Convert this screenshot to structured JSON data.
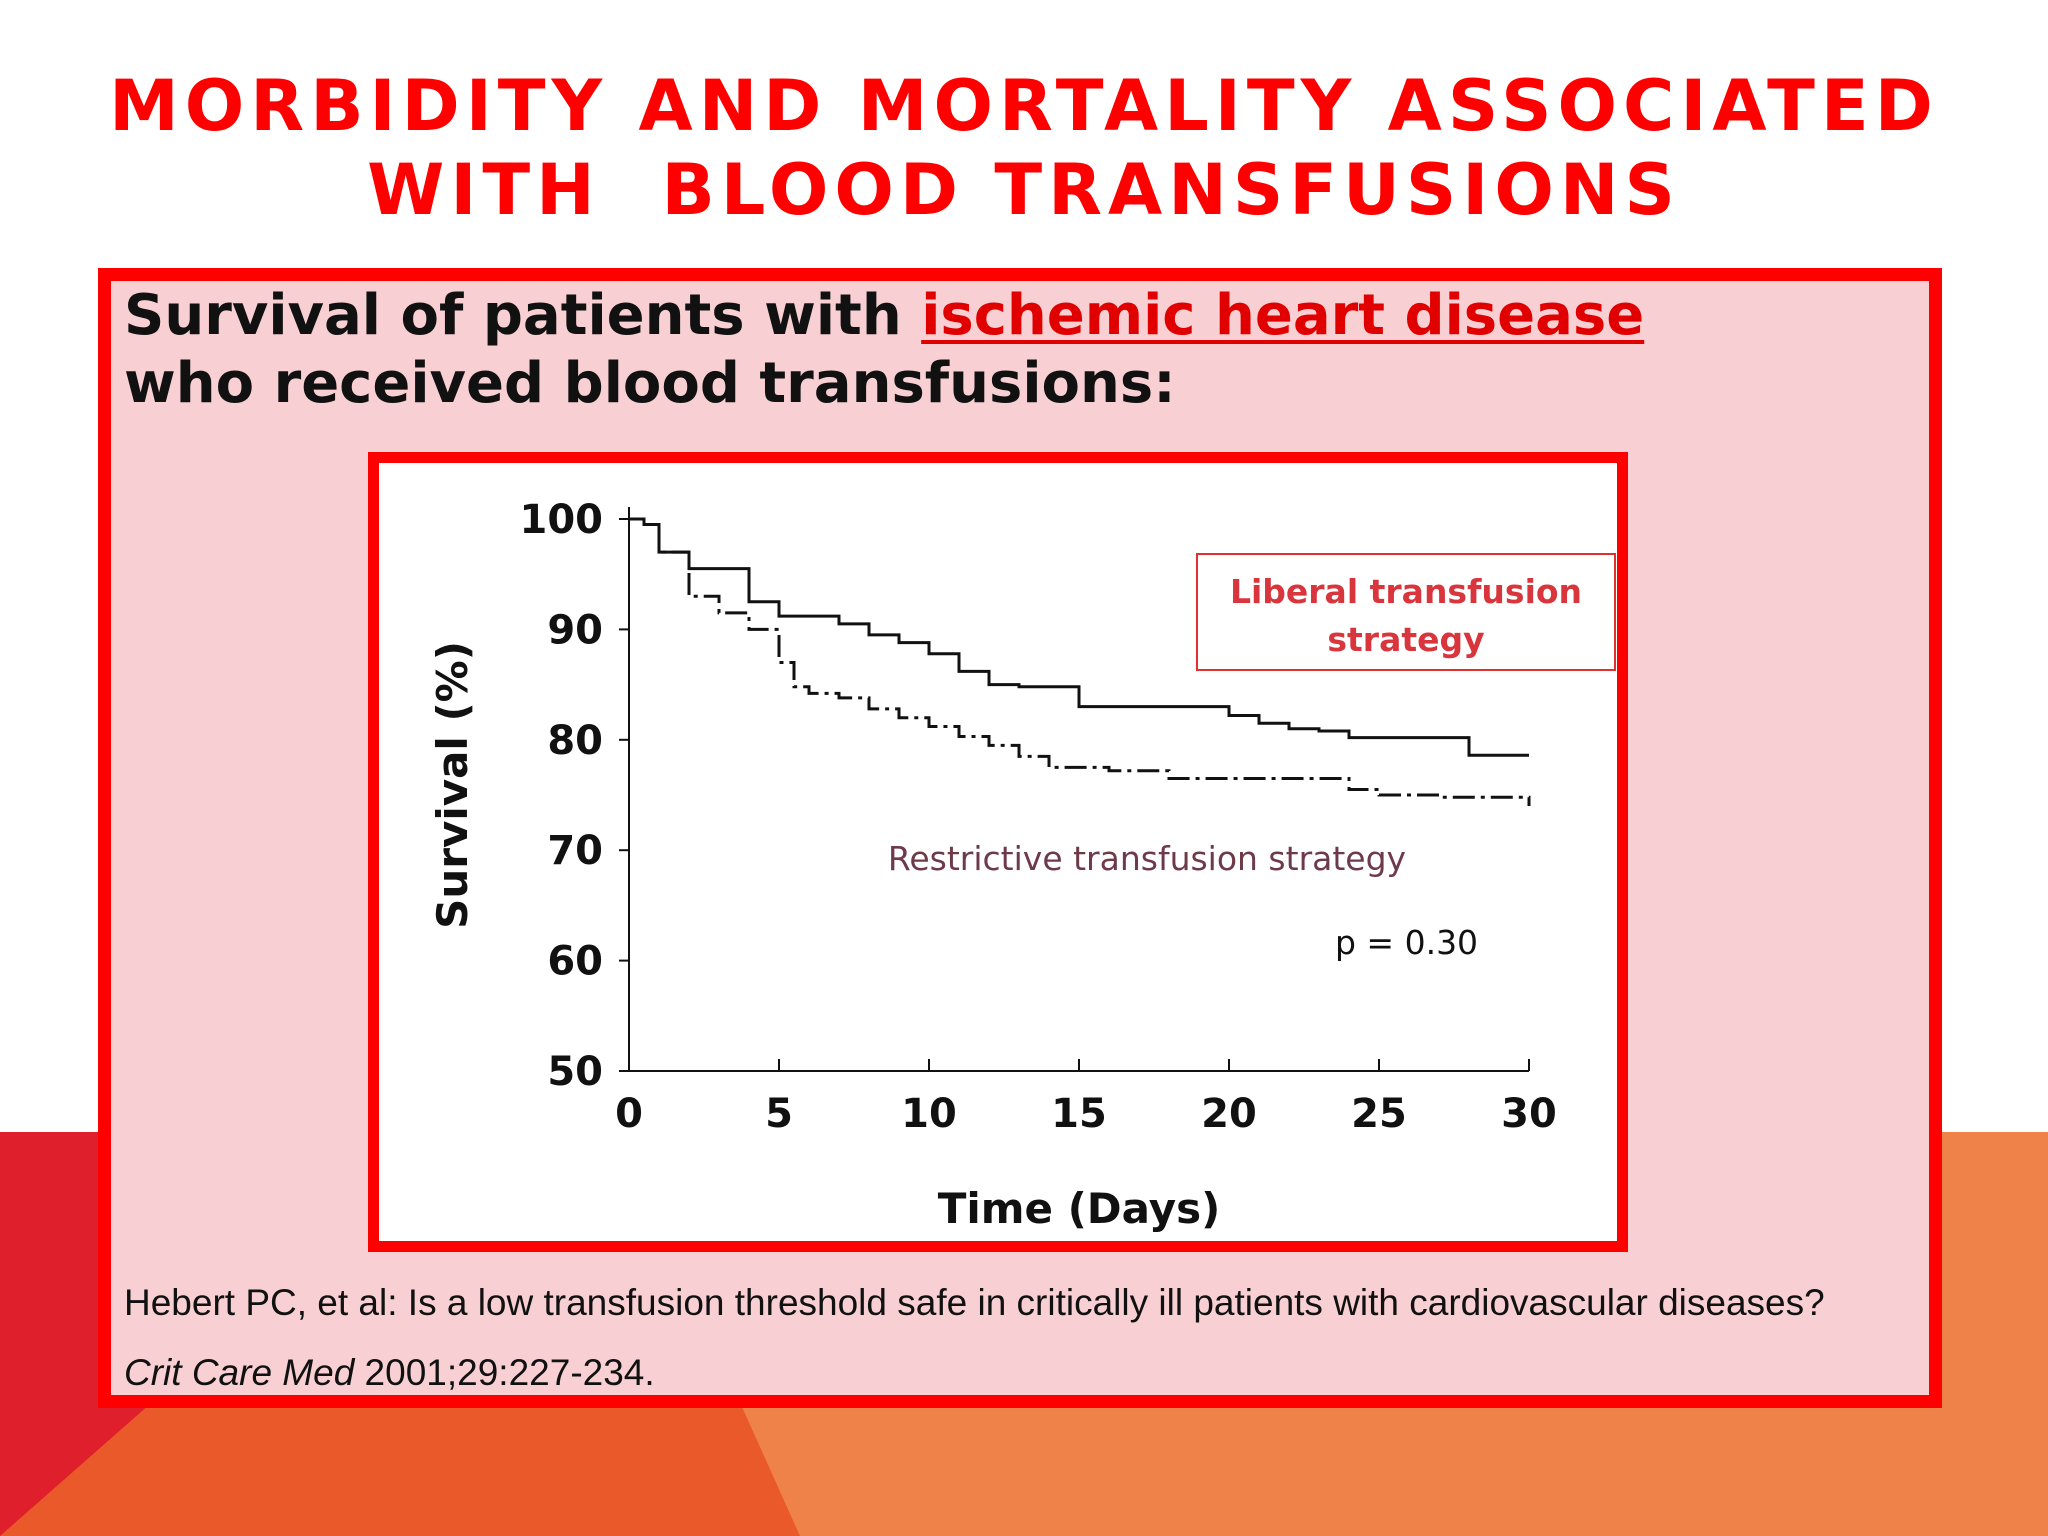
{
  "slide": {
    "title_lines": [
      "MORBIDITY AND MORTALITY ASSOCIATED",
      "WITH  BLOOD TRANSFUSIONS"
    ],
    "subtitle_prefix": "Survival of patients with ",
    "subtitle_highlight": "ischemic heart disease",
    "subtitle_line2": "who received blood transfusions:",
    "reference_line1": "Hebert PC, et al: Is a low transfusion threshold safe in critically ill patients with cardiovascular diseases?",
    "reference_journal": "Crit Care Med",
    "reference_citation": " 2001;29:227-234.",
    "colors": {
      "title": "#ff0000",
      "box_border": "#ff0000",
      "box_fill": "#f8d0d3",
      "accent_orange": "#ef8248",
      "accent_red": "#e01f2c"
    }
  },
  "chart_data": {
    "type": "line",
    "xlabel": "Time (Days)",
    "ylabel": "Survival (%)",
    "xlim": [
      0,
      30
    ],
    "ylim": [
      50,
      100
    ],
    "xticks": [
      0,
      5,
      10,
      15,
      20,
      25,
      30
    ],
    "yticks": [
      50,
      60,
      70,
      80,
      90,
      100
    ],
    "grid": false,
    "step": true,
    "series": [
      {
        "name": "Liberal transfusion strategy",
        "style": "solid",
        "x": [
          0,
          0.5,
          1,
          2,
          4,
          5,
          7,
          8,
          9,
          10,
          11,
          12,
          13,
          15,
          20,
          21,
          22,
          23,
          24,
          25,
          28,
          30
        ],
        "y": [
          100,
          99.5,
          97,
          95.5,
          92.5,
          91.2,
          90.5,
          89.5,
          88.8,
          87.8,
          86.2,
          85,
          84.8,
          83,
          82.2,
          81.5,
          81,
          80.8,
          80.2,
          80.2,
          78.6,
          78.6
        ]
      },
      {
        "name": "Restrictive transfusion strategy",
        "style": "dash-dot",
        "x": [
          0,
          0.5,
          1,
          2,
          3,
          4,
          5,
          5.5,
          6,
          7,
          8,
          9,
          10,
          11,
          12,
          13,
          14,
          15,
          16,
          17,
          18,
          22,
          24,
          25,
          27,
          29,
          30
        ],
        "y": [
          100,
          99.5,
          97,
          93,
          91.5,
          90,
          87,
          84.8,
          84.2,
          83.8,
          82.8,
          82,
          81.2,
          80.3,
          79.5,
          78.5,
          77.5,
          77.5,
          77.2,
          77.2,
          76.5,
          76.5,
          75.5,
          75,
          74.8,
          74.8,
          74
        ]
      }
    ],
    "legend": {
      "liberal_lines": [
        "Liberal  transfusion",
        "strategy"
      ],
      "restrictive": "Restrictive  transfusion  strategy"
    },
    "annotation": "p = 0.30",
    "colors": {
      "curve": "#111111",
      "liberal_label": "#d8363c",
      "restrictive_label": "#6e3a4a",
      "legend_border": "#e03030"
    }
  }
}
